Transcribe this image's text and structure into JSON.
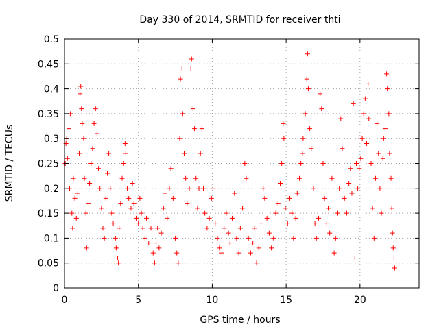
{
  "chart_data": {
    "type": "scatter",
    "title": "Day 330 of 2014, SRMTID for receiver thti",
    "xlabel": "GPS time / hours",
    "ylabel": "SRMTID / TECUs",
    "xlim": [
      0,
      24
    ],
    "ylim": [
      0,
      0.5
    ],
    "x_ticks": [
      0,
      5,
      10,
      15,
      20
    ],
    "y_ticks": [
      0,
      0.05,
      0.1,
      0.15,
      0.2,
      0.25,
      0.3,
      0.35,
      0.4,
      0.45,
      0.5
    ],
    "x_tick_labels": [
      "0",
      "5",
      "10",
      "15",
      "20"
    ],
    "y_tick_labels": [
      "0",
      "0.05",
      "0.1",
      "0.15",
      "0.2",
      "0.25",
      "0.3",
      "0.35",
      "0.4",
      "0.45",
      "0.5"
    ],
    "grid": true,
    "marker": "+",
    "marker_color": "#ff0000",
    "series": [
      {
        "points": [
          [
            0.05,
            0.25
          ],
          [
            0.1,
            0.29
          ],
          [
            0.15,
            0.3
          ],
          [
            0.2,
            0.26
          ],
          [
            0.3,
            0.32
          ],
          [
            0.35,
            0.2
          ],
          [
            0.4,
            0.35
          ],
          [
            0.5,
            0.15
          ],
          [
            0.55,
            0.12
          ],
          [
            0.6,
            0.22
          ],
          [
            0.7,
            0.18
          ],
          [
            0.8,
            0.14
          ],
          [
            0.9,
            0.19
          ],
          [
            1.0,
            0.27
          ],
          [
            1.05,
            0.39
          ],
          [
            1.1,
            0.405
          ],
          [
            1.15,
            0.36
          ],
          [
            1.2,
            0.33
          ],
          [
            1.3,
            0.3
          ],
          [
            1.35,
            0.22
          ],
          [
            1.45,
            0.15
          ],
          [
            1.5,
            0.08
          ],
          [
            1.6,
            0.17
          ],
          [
            1.7,
            0.21
          ],
          [
            1.8,
            0.25
          ],
          [
            1.9,
            0.28
          ],
          [
            2.0,
            0.33
          ],
          [
            2.1,
            0.36
          ],
          [
            2.2,
            0.31
          ],
          [
            2.3,
            0.24
          ],
          [
            2.4,
            0.2
          ],
          [
            2.5,
            0.16
          ],
          [
            2.6,
            0.12
          ],
          [
            2.7,
            0.1
          ],
          [
            2.8,
            0.18
          ],
          [
            2.9,
            0.23
          ],
          [
            3.0,
            0.27
          ],
          [
            3.1,
            0.2
          ],
          [
            3.2,
            0.15
          ],
          [
            3.3,
            0.13
          ],
          [
            3.45,
            0.1
          ],
          [
            3.5,
            0.08
          ],
          [
            3.6,
            0.06
          ],
          [
            3.65,
            0.05
          ],
          [
            3.7,
            0.12
          ],
          [
            3.8,
            0.17
          ],
          [
            3.9,
            0.22
          ],
          [
            4.0,
            0.25
          ],
          [
            4.1,
            0.29
          ],
          [
            4.15,
            0.27
          ],
          [
            4.25,
            0.2
          ],
          [
            4.35,
            0.18
          ],
          [
            4.5,
            0.16
          ],
          [
            4.6,
            0.21
          ],
          [
            4.7,
            0.17
          ],
          [
            4.85,
            0.14
          ],
          [
            5.0,
            0.13
          ],
          [
            5.1,
            0.18
          ],
          [
            5.2,
            0.15
          ],
          [
            5.3,
            0.12
          ],
          [
            5.45,
            0.1
          ],
          [
            5.55,
            0.14
          ],
          [
            5.7,
            0.09
          ],
          [
            5.85,
            0.12
          ],
          [
            6.0,
            0.07
          ],
          [
            6.1,
            0.05
          ],
          [
            6.2,
            0.09
          ],
          [
            6.3,
            0.12
          ],
          [
            6.4,
            0.08
          ],
          [
            6.55,
            0.11
          ],
          [
            6.7,
            0.16
          ],
          [
            6.8,
            0.19
          ],
          [
            6.95,
            0.14
          ],
          [
            7.1,
            0.2
          ],
          [
            7.2,
            0.24
          ],
          [
            7.35,
            0.18
          ],
          [
            7.5,
            0.1
          ],
          [
            7.6,
            0.07
          ],
          [
            7.7,
            0.05
          ],
          [
            7.8,
            0.3
          ],
          [
            7.85,
            0.42
          ],
          [
            7.95,
            0.44
          ],
          [
            8.0,
            0.35
          ],
          [
            8.1,
            0.27
          ],
          [
            8.2,
            0.22
          ],
          [
            8.3,
            0.17
          ],
          [
            8.45,
            0.2
          ],
          [
            8.55,
            0.44
          ],
          [
            8.6,
            0.46
          ],
          [
            8.7,
            0.36
          ],
          [
            8.8,
            0.32
          ],
          [
            8.9,
            0.22
          ],
          [
            9.0,
            0.16
          ],
          [
            9.1,
            0.2
          ],
          [
            9.2,
            0.27
          ],
          [
            9.3,
            0.32
          ],
          [
            9.4,
            0.2
          ],
          [
            9.5,
            0.15
          ],
          [
            9.65,
            0.12
          ],
          [
            9.8,
            0.14
          ],
          [
            9.95,
            0.18
          ],
          [
            10.05,
            0.2
          ],
          [
            10.2,
            0.13
          ],
          [
            10.35,
            0.1
          ],
          [
            10.5,
            0.08
          ],
          [
            10.65,
            0.07
          ],
          [
            10.8,
            0.12
          ],
          [
            10.95,
            0.15
          ],
          [
            11.1,
            0.11
          ],
          [
            11.2,
            0.09
          ],
          [
            11.35,
            0.14
          ],
          [
            11.5,
            0.19
          ],
          [
            11.65,
            0.1
          ],
          [
            11.8,
            0.07
          ],
          [
            11.9,
            0.12
          ],
          [
            12.05,
            0.16
          ],
          [
            12.2,
            0.25
          ],
          [
            12.3,
            0.22
          ],
          [
            12.45,
            0.1
          ],
          [
            12.6,
            0.07
          ],
          [
            12.75,
            0.09
          ],
          [
            12.85,
            0.12
          ],
          [
            13.0,
            0.05
          ],
          [
            13.15,
            0.08
          ],
          [
            13.3,
            0.13
          ],
          [
            13.45,
            0.2
          ],
          [
            13.55,
            0.18
          ],
          [
            13.7,
            0.14
          ],
          [
            13.85,
            0.11
          ],
          [
            14.0,
            0.08
          ],
          [
            14.15,
            0.1
          ],
          [
            14.3,
            0.15
          ],
          [
            14.45,
            0.17
          ],
          [
            14.6,
            0.21
          ],
          [
            14.7,
            0.25
          ],
          [
            14.8,
            0.33
          ],
          [
            14.85,
            0.3
          ],
          [
            14.95,
            0.16
          ],
          [
            15.1,
            0.13
          ],
          [
            15.25,
            0.18
          ],
          [
            15.4,
            0.15
          ],
          [
            15.5,
            0.1
          ],
          [
            15.65,
            0.14
          ],
          [
            15.75,
            0.19
          ],
          [
            15.9,
            0.22
          ],
          [
            16.0,
            0.25
          ],
          [
            16.1,
            0.27
          ],
          [
            16.15,
            0.3
          ],
          [
            16.3,
            0.35
          ],
          [
            16.4,
            0.42
          ],
          [
            16.45,
            0.47
          ],
          [
            16.5,
            0.4
          ],
          [
            16.6,
            0.32
          ],
          [
            16.7,
            0.28
          ],
          [
            16.85,
            0.2
          ],
          [
            16.95,
            0.13
          ],
          [
            17.05,
            0.1
          ],
          [
            17.2,
            0.14
          ],
          [
            17.3,
            0.39
          ],
          [
            17.4,
            0.36
          ],
          [
            17.5,
            0.25
          ],
          [
            17.6,
            0.18
          ],
          [
            17.75,
            0.13
          ],
          [
            17.85,
            0.16
          ],
          [
            17.95,
            0.11
          ],
          [
            18.1,
            0.22
          ],
          [
            18.25,
            0.07
          ],
          [
            18.35,
            0.1
          ],
          [
            18.5,
            0.15
          ],
          [
            18.6,
            0.2
          ],
          [
            18.7,
            0.34
          ],
          [
            18.8,
            0.28
          ],
          [
            18.95,
            0.18
          ],
          [
            19.1,
            0.15
          ],
          [
            19.25,
            0.21
          ],
          [
            19.35,
            0.24
          ],
          [
            19.45,
            0.19
          ],
          [
            19.55,
            0.37
          ],
          [
            19.65,
            0.06
          ],
          [
            19.75,
            0.25
          ],
          [
            19.85,
            0.2
          ],
          [
            19.95,
            0.24
          ],
          [
            20.05,
            0.26
          ],
          [
            20.15,
            0.3
          ],
          [
            20.25,
            0.35
          ],
          [
            20.35,
            0.38
          ],
          [
            20.45,
            0.29
          ],
          [
            20.55,
            0.41
          ],
          [
            20.6,
            0.34
          ],
          [
            20.75,
            0.25
          ],
          [
            20.85,
            0.16
          ],
          [
            20.95,
            0.1
          ],
          [
            21.05,
            0.22
          ],
          [
            21.15,
            0.33
          ],
          [
            21.25,
            0.27
          ],
          [
            21.35,
            0.2
          ],
          [
            21.45,
            0.15
          ],
          [
            21.55,
            0.26
          ],
          [
            21.6,
            0.3
          ],
          [
            21.7,
            0.32
          ],
          [
            21.8,
            0.43
          ],
          [
            21.85,
            0.4
          ],
          [
            21.95,
            0.35
          ],
          [
            22.0,
            0.27
          ],
          [
            22.1,
            0.22
          ],
          [
            22.15,
            0.16
          ],
          [
            22.2,
            0.11
          ],
          [
            22.25,
            0.08
          ],
          [
            22.3,
            0.06
          ],
          [
            22.35,
            0.04
          ]
        ]
      }
    ]
  }
}
